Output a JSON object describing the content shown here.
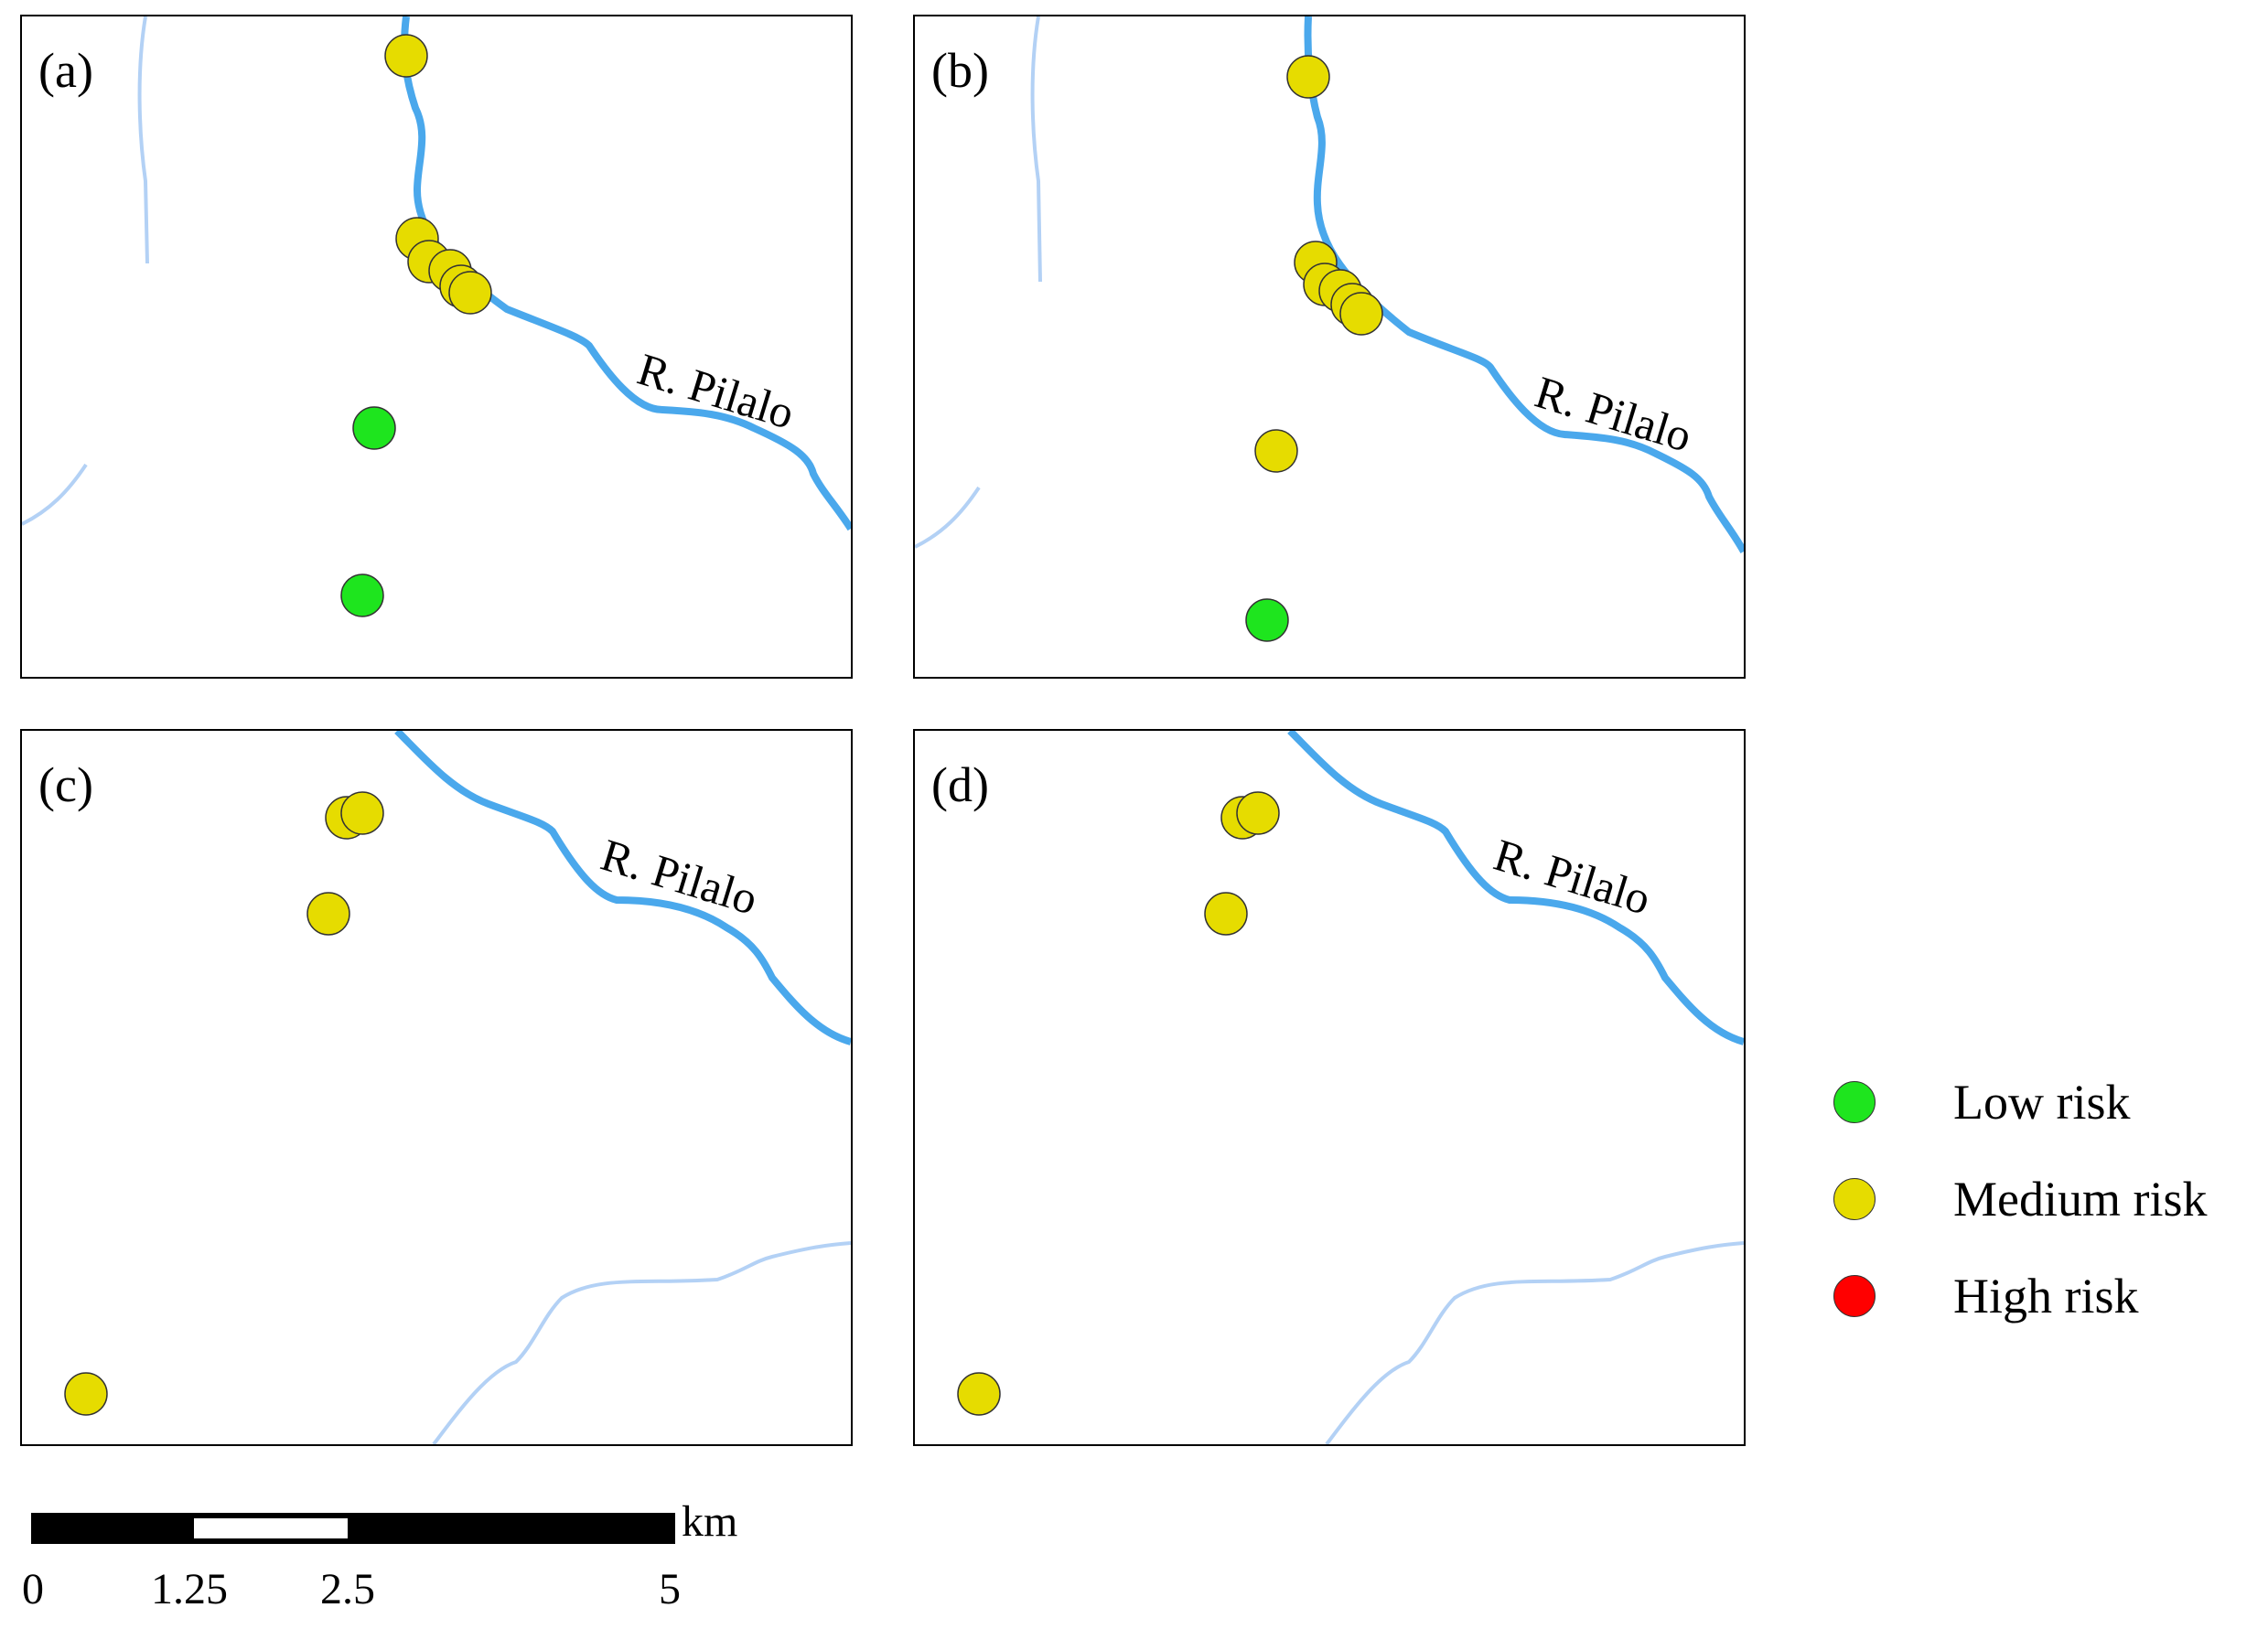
{
  "panels": [
    {
      "label": "(a)",
      "river_label": "R. Pilalo",
      "points": [
        {
          "risk": "medium"
        },
        {
          "risk": "medium"
        },
        {
          "risk": "medium"
        },
        {
          "risk": "medium"
        },
        {
          "risk": "medium"
        },
        {
          "risk": "medium"
        },
        {
          "risk": "low"
        },
        {
          "risk": "low"
        }
      ]
    },
    {
      "label": "(b)",
      "river_label": "R. Pilalo",
      "points": [
        {
          "risk": "medium"
        },
        {
          "risk": "medium"
        },
        {
          "risk": "medium"
        },
        {
          "risk": "medium"
        },
        {
          "risk": "medium"
        },
        {
          "risk": "medium"
        },
        {
          "risk": "medium"
        },
        {
          "risk": "low"
        }
      ]
    },
    {
      "label": "(c)",
      "river_label": "R. Pilalo",
      "points": [
        {
          "risk": "medium"
        },
        {
          "risk": "medium"
        },
        {
          "risk": "medium"
        },
        {
          "risk": "medium"
        }
      ]
    },
    {
      "label": "(d)",
      "river_label": "R. Pilalo",
      "points": [
        {
          "risk": "medium"
        },
        {
          "risk": "medium"
        },
        {
          "risk": "medium"
        },
        {
          "risk": "medium"
        }
      ]
    }
  ],
  "legend": {
    "items": [
      {
        "label": "Low risk",
        "color": "#1ee51e"
      },
      {
        "label": "Medium risk",
        "color": "#e6dc00"
      },
      {
        "label": "High risk",
        "color": "#ff0000"
      }
    ]
  },
  "scalebar": {
    "unit": "km",
    "ticks": [
      "0",
      "1.25",
      "2.5",
      "5"
    ]
  },
  "colors": {
    "main_river": "#4aa8ec",
    "minor_stream": "#b3d1f5",
    "low": "#1ee51e",
    "medium": "#e6dc00",
    "high": "#ff0000"
  }
}
